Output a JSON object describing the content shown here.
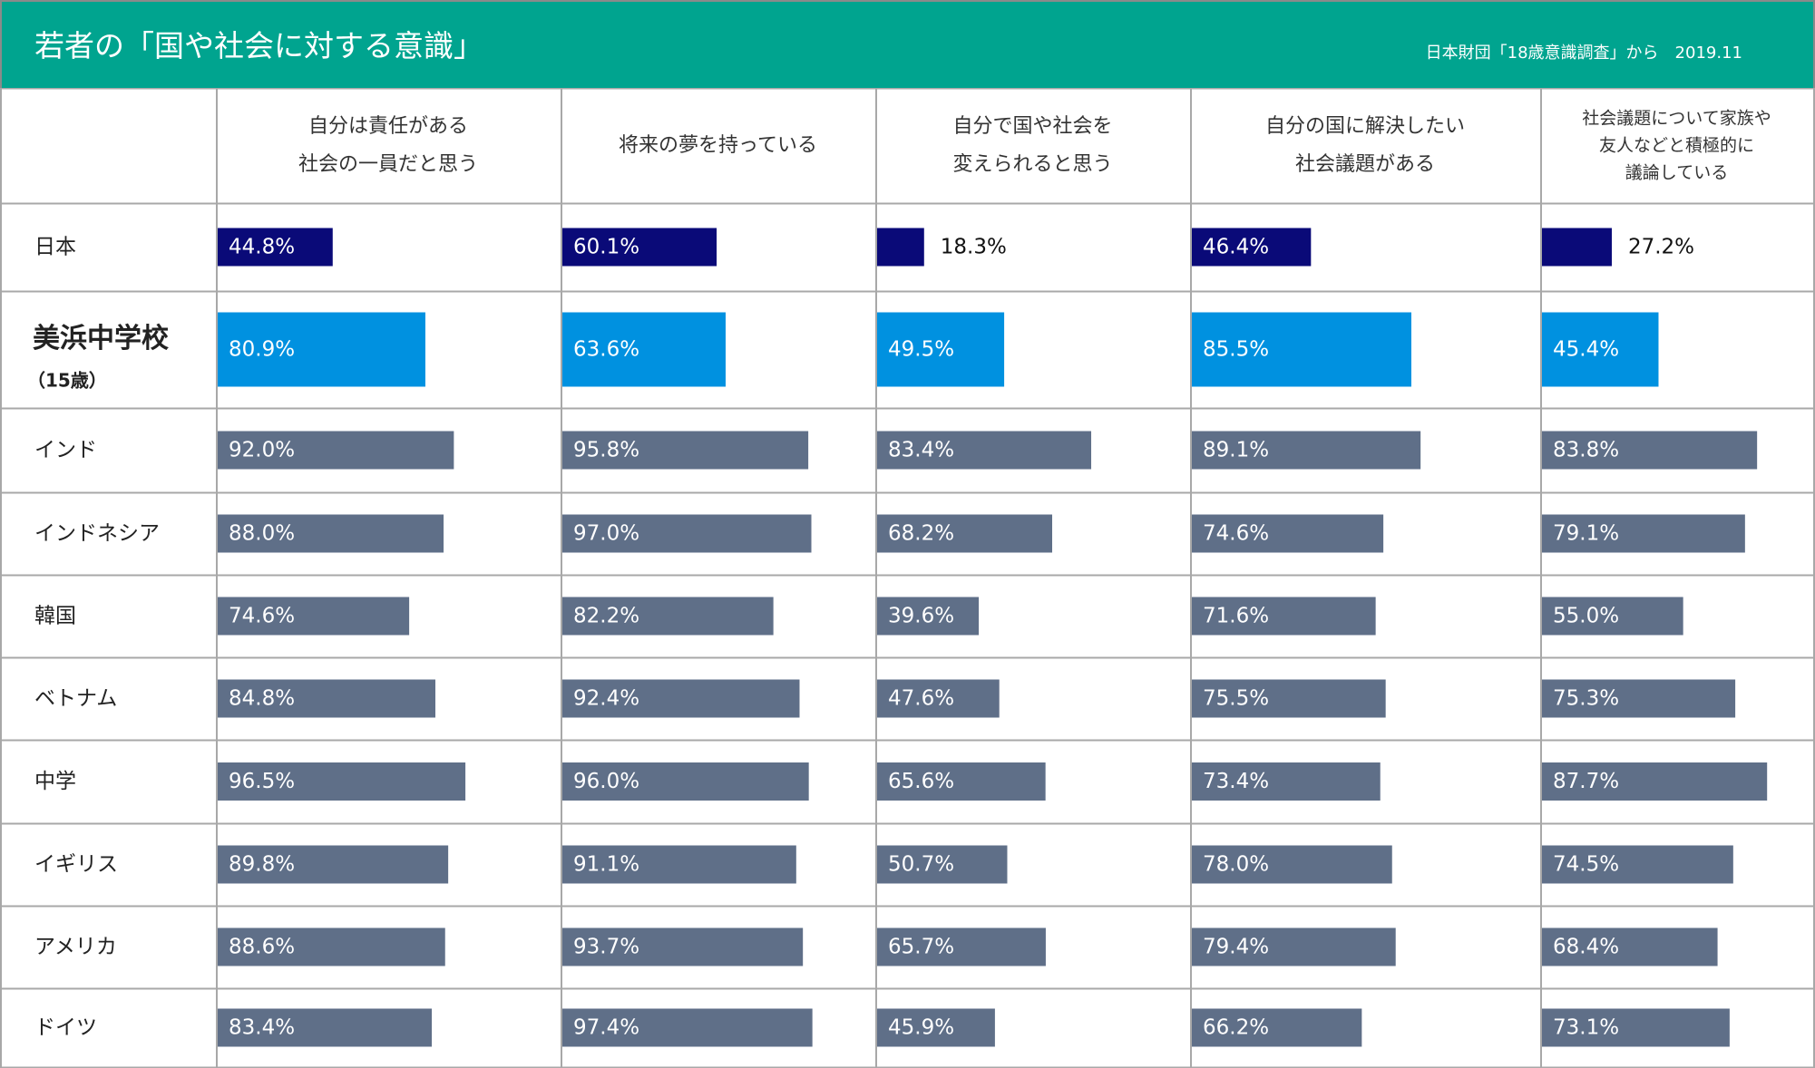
{
  "header": {
    "title": "若者の「国や社会に対する意識」",
    "source": "日本財団「18歳意識調査」から　2019.11"
  },
  "colors": {
    "header_bg": "#00a48f",
    "japan": "#0a0a78",
    "highlight": "#0091e0",
    "highlight_text": "#0a8fd6",
    "other": "#5f6f88",
    "grid": "#a8a8a8"
  },
  "chart_data": {
    "type": "bar",
    "orientation": "horizontal",
    "value_unit": "%",
    "columns": [
      {
        "lines": [
          "自分は責任がある",
          "社会の一員だと思う"
        ]
      },
      {
        "lines": [
          "将来の夢を持っている"
        ]
      },
      {
        "lines": [
          "自分で国や社会を",
          "変えられると思う"
        ]
      },
      {
        "lines": [
          "自分の国に解決したい",
          "社会議題がある"
        ]
      },
      {
        "lines": [
          "社会議題について家族や",
          "友人などと積極的に",
          "議論している"
        ]
      }
    ],
    "rows": [
      {
        "label": "日本",
        "kind": "japan",
        "values": [
          44.8,
          60.1,
          18.3,
          46.4,
          27.2
        ]
      },
      {
        "label": "美浜中学校",
        "sublabel": "（15歳）",
        "kind": "highlight",
        "values": [
          80.9,
          63.6,
          49.5,
          85.5,
          45.4
        ]
      },
      {
        "label": "インド",
        "kind": "other",
        "values": [
          92.0,
          95.8,
          83.4,
          89.1,
          83.8
        ]
      },
      {
        "label": "インドネシア",
        "kind": "other",
        "values": [
          88.0,
          97.0,
          68.2,
          74.6,
          79.1
        ]
      },
      {
        "label": "韓国",
        "kind": "other",
        "values": [
          74.6,
          82.2,
          39.6,
          71.6,
          55.0
        ]
      },
      {
        "label": "ベトナム",
        "kind": "other",
        "values": [
          84.8,
          92.4,
          47.6,
          75.5,
          75.3
        ]
      },
      {
        "label": "中学",
        "kind": "other",
        "values": [
          96.5,
          96.0,
          65.6,
          73.4,
          87.7
        ]
      },
      {
        "label": "イギリス",
        "kind": "other",
        "values": [
          89.8,
          91.1,
          50.7,
          78.0,
          74.5
        ]
      },
      {
        "label": "アメリカ",
        "kind": "other",
        "values": [
          88.6,
          93.7,
          65.7,
          79.4,
          68.4
        ]
      },
      {
        "label": "ドイツ",
        "kind": "other",
        "values": [
          83.4,
          97.4,
          45.9,
          66.2,
          73.1
        ]
      }
    ]
  }
}
